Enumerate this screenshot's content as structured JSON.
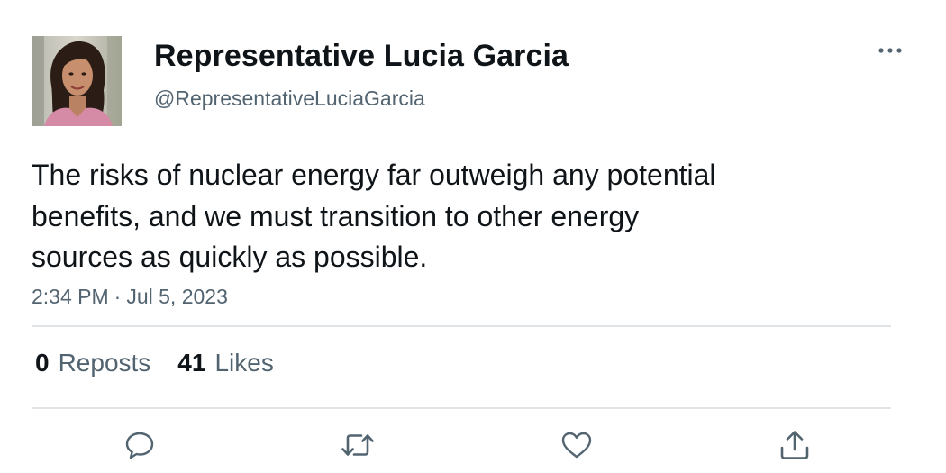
{
  "author": {
    "display_name": "Representative Lucia Garcia",
    "handle": "@RepresentativeLuciaGarcia",
    "avatar_icon": "profile-photo"
  },
  "tweet": {
    "text_lines": [
      "The risks of nuclear energy far outweigh any potential",
      "benefits, and we must transition to other energy",
      "sources as quickly as possible."
    ],
    "time": "2:34 PM",
    "separator": "·",
    "date": "Jul 5, 2023"
  },
  "stats": {
    "reposts_count": "0",
    "reposts_label": "Reposts",
    "likes_count": "41",
    "likes_label": "Likes"
  },
  "actions": {
    "reply_icon": "speech-bubble-icon",
    "repost_icon": "repost-arrows-icon",
    "like_icon": "heart-icon",
    "share_icon": "share-upload-icon",
    "more_icon": "ellipsis-icon"
  },
  "colors": {
    "text_primary": "#0f1419",
    "text_secondary": "#536471",
    "divider": "#e1e4e6"
  }
}
